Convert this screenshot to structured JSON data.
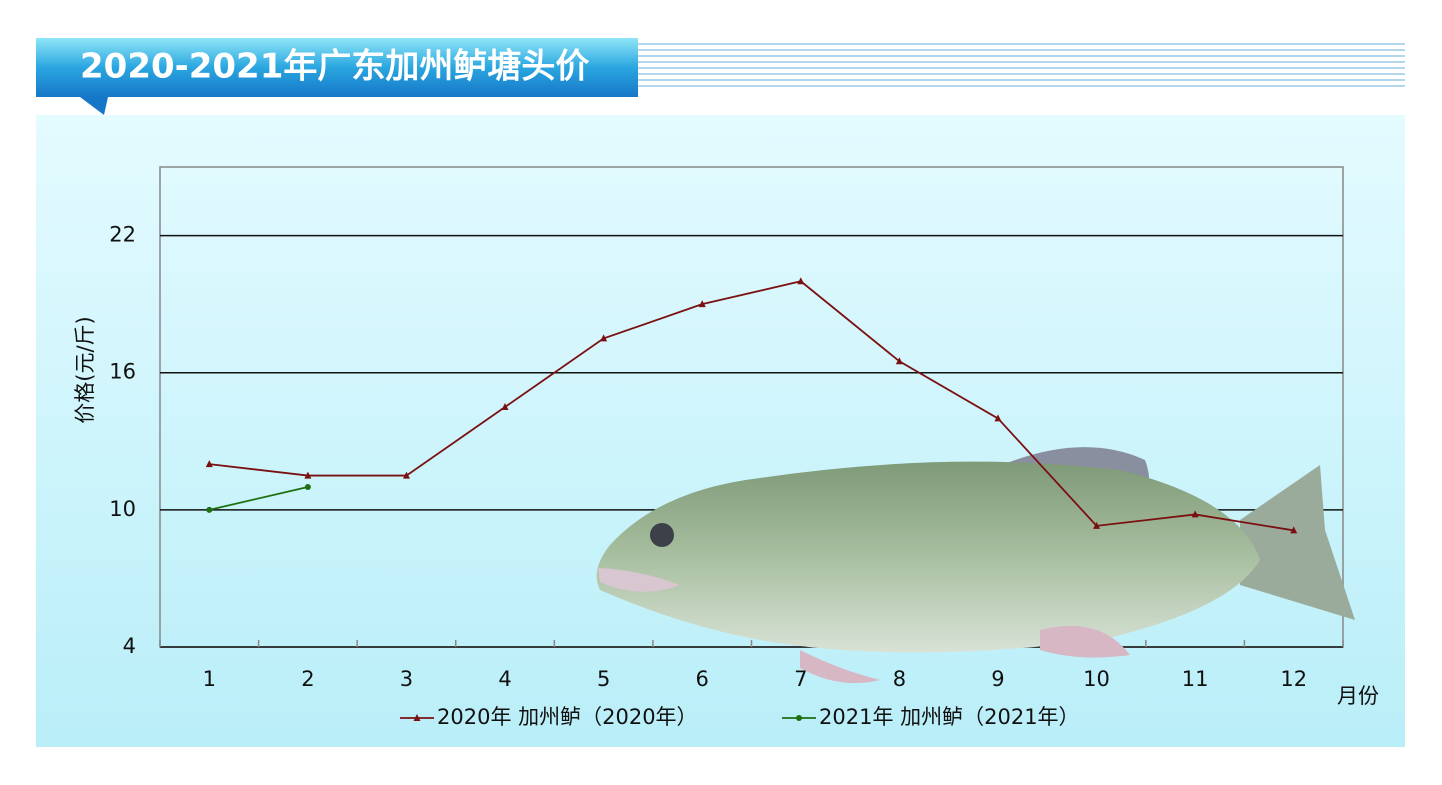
{
  "chart_data": {
    "type": "line",
    "title": "2020-2021年广东加州鲈塘头价",
    "x_label": "月份",
    "y_label": "价格(元/斤)",
    "categories": [
      "1",
      "2",
      "3",
      "4",
      "5",
      "6",
      "7",
      "8",
      "9",
      "10",
      "11",
      "12"
    ],
    "series": [
      {
        "name": "2020年 加州鲈（2020年）",
        "color": "#7b1010",
        "marker": "triangle",
        "values": [
          12,
          11.5,
          11.5,
          14.5,
          17.5,
          19,
          20,
          16.5,
          14,
          9.3,
          9.8,
          9.1
        ]
      },
      {
        "name": "2021年 加州鲈（2021年）",
        "color": "#1e6e12",
        "marker": "circle",
        "values": [
          10,
          11,
          null,
          null,
          null,
          null,
          null,
          null,
          null,
          null,
          null,
          null
        ]
      }
    ],
    "ylim": [
      4,
      25
    ],
    "yticks": [
      4,
      10,
      16,
      22
    ],
    "grid": true
  }
}
